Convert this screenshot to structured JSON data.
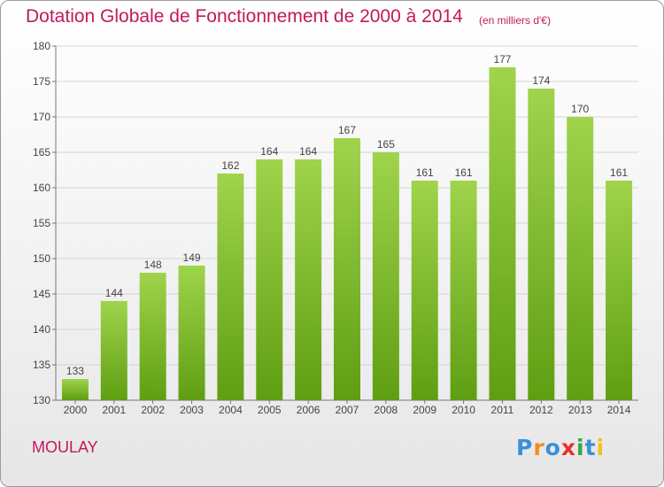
{
  "header": {
    "title": "Dotation Globale de Fonctionnement de 2000 à 2014",
    "subtitle": "(en milliers d'€)"
  },
  "footer": {
    "city": "MOULAY",
    "logo_text": "Proxiti"
  },
  "colors": {
    "title": "#c1195e",
    "bar_light": "#9fd44c",
    "bar_dark": "#5f9e12",
    "grid": "#d4d4d4",
    "logo": [
      "#3a8fd8",
      "#f28c1e",
      "#3a8fd8",
      "#e8302b",
      "#3aa64a",
      "#3a8fd8",
      "#f2c21e"
    ]
  },
  "chart_data": {
    "type": "bar",
    "categories": [
      "2000",
      "2001",
      "2002",
      "2003",
      "2004",
      "2005",
      "2006",
      "2007",
      "2008",
      "2009",
      "2010",
      "2011",
      "2012",
      "2013",
      "2014"
    ],
    "values": [
      133,
      144,
      148,
      149,
      162,
      164,
      164,
      167,
      165,
      161,
      161,
      177,
      174,
      170,
      161
    ],
    "ylim": [
      130,
      180
    ],
    "yticks": [
      130,
      135,
      140,
      145,
      150,
      155,
      160,
      165,
      170,
      175,
      180
    ],
    "grid": true,
    "data_labels": true
  }
}
